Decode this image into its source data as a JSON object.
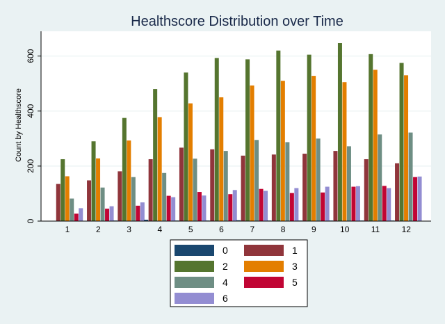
{
  "chart_data": {
    "type": "bar",
    "title": "Healthscore Distribution over Time",
    "xlabel": "",
    "ylabel": "Count by Healthscore",
    "ylim": [
      0,
      690
    ],
    "yticks": [
      0,
      200,
      400,
      600
    ],
    "grid": true,
    "legend_position": "bottom",
    "categories": [
      "1",
      "2",
      "3",
      "4",
      "5",
      "6",
      "7",
      "8",
      "9",
      "10",
      "11",
      "12"
    ],
    "series": [
      {
        "name": "0",
        "color": "#1a476f",
        "values": [
          0,
          0,
          2,
          5,
          2,
          2,
          3,
          2,
          2,
          2,
          2,
          2
        ]
      },
      {
        "name": "1",
        "color": "#90353b",
        "values": [
          135,
          148,
          181,
          225,
          267,
          261,
          238,
          242,
          245,
          255,
          225,
          210
        ]
      },
      {
        "name": "2",
        "color": "#55752f",
        "values": [
          225,
          290,
          375,
          480,
          540,
          593,
          588,
          620,
          605,
          647,
          607,
          575
        ]
      },
      {
        "name": "3",
        "color": "#e37e00",
        "values": [
          163,
          228,
          293,
          378,
          428,
          450,
          493,
          510,
          528,
          505,
          550,
          530
        ]
      },
      {
        "name": "4",
        "color": "#6e8e84",
        "values": [
          82,
          122,
          160,
          175,
          227,
          255,
          295,
          287,
          300,
          272,
          315,
          322
        ]
      },
      {
        "name": "5",
        "color": "#c10534",
        "values": [
          27,
          45,
          56,
          92,
          106,
          98,
          117,
          102,
          104,
          125,
          128,
          160
        ]
      },
      {
        "name": "6",
        "color": "#938dd2",
        "values": [
          47,
          54,
          68,
          87,
          93,
          113,
          110,
          120,
          125,
          127,
          120,
          162
        ]
      }
    ]
  }
}
